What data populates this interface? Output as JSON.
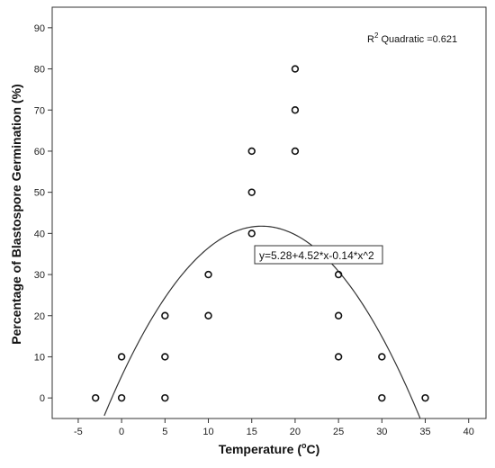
{
  "chart_data": {
    "type": "scatter",
    "xlabel": "Temperature (",
    "xlabel_unit_degree": "o",
    "xlabel_unit_letter": "C)",
    "ylabel": "Percentage of Blastospore Germination (%)",
    "xlim": [
      -8,
      42
    ],
    "ylim": [
      -5,
      95
    ],
    "x_ticks": [
      -5,
      0,
      5,
      10,
      15,
      20,
      25,
      30,
      35,
      40
    ],
    "y_ticks": [
      0,
      10,
      20,
      30,
      40,
      50,
      60,
      70,
      80,
      90
    ],
    "grid": false,
    "points": [
      {
        "x": -3,
        "y": 0
      },
      {
        "x": 0,
        "y": 0
      },
      {
        "x": 0,
        "y": 10
      },
      {
        "x": 5,
        "y": 0
      },
      {
        "x": 5,
        "y": 10
      },
      {
        "x": 5,
        "y": 20
      },
      {
        "x": 10,
        "y": 20
      },
      {
        "x": 10,
        "y": 30
      },
      {
        "x": 15,
        "y": 40
      },
      {
        "x": 15,
        "y": 50
      },
      {
        "x": 15,
        "y": 60
      },
      {
        "x": 20,
        "y": 60
      },
      {
        "x": 20,
        "y": 70
      },
      {
        "x": 20,
        "y": 80
      },
      {
        "x": 25,
        "y": 10
      },
      {
        "x": 25,
        "y": 20
      },
      {
        "x": 25,
        "y": 30
      },
      {
        "x": 30,
        "y": 0
      },
      {
        "x": 30,
        "y": 10
      },
      {
        "x": 35,
        "y": 0
      }
    ],
    "fit": {
      "type": "quadratic",
      "intercept": 5.28,
      "linear": 4.52,
      "quadratic": -0.14,
      "equation_label": "y=5.28+4.52*x-0.14*x^2"
    },
    "r2_prefix": "R",
    "r2_sup": "2",
    "r2_suffix": " Quadratic =0.621"
  }
}
